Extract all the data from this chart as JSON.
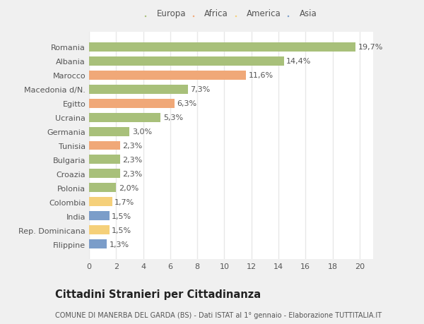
{
  "categories": [
    "Filippine",
    "Rep. Dominicana",
    "India",
    "Colombia",
    "Polonia",
    "Croazia",
    "Bulgaria",
    "Tunisia",
    "Germania",
    "Ucraina",
    "Egitto",
    "Macedonia d/N.",
    "Marocco",
    "Albania",
    "Romania"
  ],
  "values": [
    1.3,
    1.5,
    1.5,
    1.7,
    2.0,
    2.3,
    2.3,
    2.3,
    3.0,
    5.3,
    6.3,
    7.3,
    11.6,
    14.4,
    19.7
  ],
  "labels": [
    "1,3%",
    "1,5%",
    "1,5%",
    "1,7%",
    "2,0%",
    "2,3%",
    "2,3%",
    "2,3%",
    "3,0%",
    "5,3%",
    "6,3%",
    "7,3%",
    "11,6%",
    "14,4%",
    "19,7%"
  ],
  "colors": [
    "#7b9dc9",
    "#f5d07a",
    "#7b9dc9",
    "#f5d07a",
    "#a8c07a",
    "#a8c07a",
    "#a8c07a",
    "#f0a878",
    "#a8c07a",
    "#a8c07a",
    "#f0a878",
    "#a8c07a",
    "#f0a878",
    "#a8c07a",
    "#a8c07a"
  ],
  "legend": {
    "Europa": "#a8c07a",
    "Africa": "#f0a878",
    "America": "#f5d07a",
    "Asia": "#7b9dc9"
  },
  "xlim": [
    0,
    21
  ],
  "xticks": [
    0,
    2,
    4,
    6,
    8,
    10,
    12,
    14,
    16,
    18,
    20
  ],
  "title": "Cittadini Stranieri per Cittadinanza",
  "subtitle": "COMUNE DI MANERBA DEL GARDA (BS) - Dati ISTAT al 1° gennaio - Elaborazione TUTTITALIA.IT",
  "fig_bg_color": "#f0f0f0",
  "plot_bg_color": "#ffffff",
  "grid_color": "#e8e8e8",
  "bar_height": 0.65,
  "label_fontsize": 8,
  "ytick_fontsize": 8,
  "xtick_fontsize": 8,
  "title_fontsize": 10.5,
  "subtitle_fontsize": 7,
  "legend_fontsize": 8.5,
  "text_color": "#555555",
  "title_color": "#222222"
}
